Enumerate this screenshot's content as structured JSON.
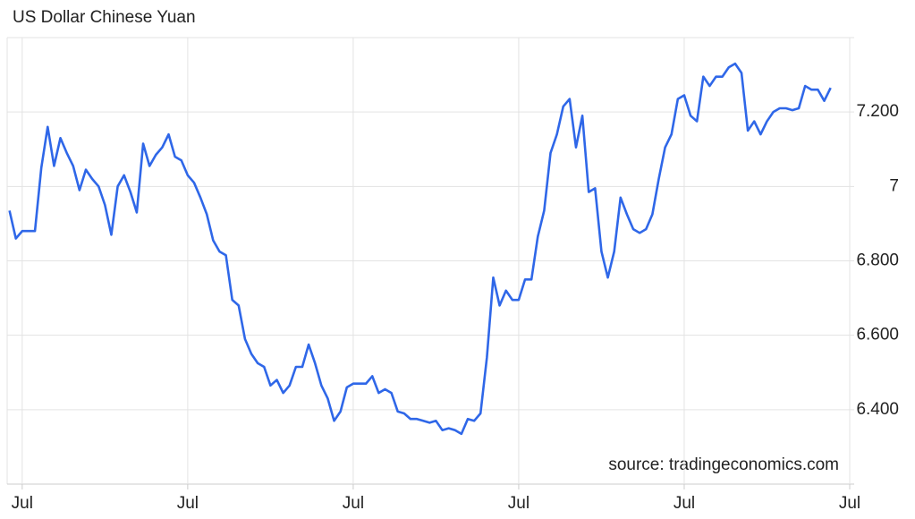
{
  "chart_data": {
    "type": "line",
    "title": "US Dollar Chinese Yuan",
    "annotation": "source: tradingeconomics.com",
    "color": "#2f67e8",
    "grid": true,
    "ylim": [
      6.2,
      7.4
    ],
    "yticks": [
      {
        "value": 6.4,
        "label": "6.400"
      },
      {
        "value": 6.6,
        "label": "6.600"
      },
      {
        "value": 6.8,
        "label": "6.800"
      },
      7,
      {
        "value": 7.2,
        "label": "7.200"
      }
    ],
    "categories": [
      null,
      null,
      "Jul",
      null,
      null,
      null,
      null,
      null,
      null,
      null,
      null,
      null,
      null,
      null,
      null,
      null,
      null,
      null,
      null,
      null,
      null,
      null,
      null,
      null,
      null,
      null,
      null,
      null,
      "Jul",
      null,
      null,
      null,
      null,
      null,
      null,
      null,
      null,
      null,
      null,
      null,
      null,
      null,
      null,
      null,
      null,
      null,
      null,
      null,
      null,
      null,
      null,
      null,
      null,
      null,
      "Jul",
      null,
      null,
      null,
      null,
      null,
      null,
      null,
      null,
      null,
      null,
      null,
      null,
      null,
      null,
      null,
      null,
      null,
      null,
      null,
      null,
      null,
      null,
      null,
      null,
      null,
      "Jul",
      null,
      null,
      null,
      null,
      null,
      null,
      null,
      null,
      null,
      null,
      null,
      null,
      null,
      null,
      null,
      null,
      null,
      null,
      null,
      null,
      null,
      null,
      null,
      null,
      null,
      "Jul",
      null,
      null,
      null,
      null,
      null,
      null,
      null,
      null,
      null,
      null,
      null,
      null,
      null,
      null,
      null,
      null,
      null,
      null,
      null,
      null,
      null,
      null,
      null,
      null,
      null,
      "Jul"
    ],
    "values": [
      6.935,
      6.86,
      6.88,
      6.88,
      6.88,
      7.05,
      7.16,
      7.055,
      7.13,
      7.09,
      7.055,
      6.99,
      7.045,
      7.02,
      7.0,
      6.95,
      6.87,
      7.0,
      7.03,
      6.985,
      6.93,
      7.115,
      7.055,
      7.085,
      7.105,
      7.14,
      7.08,
      7.07,
      7.03,
      7.01,
      6.97,
      6.925,
      6.855,
      6.825,
      6.815,
      6.695,
      6.68,
      6.59,
      6.55,
      6.525,
      6.515,
      6.465,
      6.48,
      6.445,
      6.465,
      6.515,
      6.515,
      6.575,
      6.525,
      6.465,
      6.43,
      6.37,
      6.395,
      6.46,
      6.47,
      6.47,
      6.47,
      6.49,
      6.445,
      6.455,
      6.445,
      6.395,
      6.39,
      6.375,
      6.375,
      6.37,
      6.365,
      6.37,
      6.345,
      6.35,
      6.345,
      6.335,
      6.375,
      6.37,
      6.39,
      6.54,
      6.755,
      6.68,
      6.72,
      6.695,
      6.695,
      6.75,
      6.75,
      6.865,
      6.935,
      7.09,
      7.14,
      7.215,
      7.235,
      7.105,
      7.19,
      6.985,
      6.995,
      6.825,
      6.755,
      6.825,
      6.97,
      6.925,
      6.885,
      6.875,
      6.885,
      6.925,
      7.02,
      7.105,
      7.14,
      7.235,
      7.245,
      7.19,
      7.175,
      7.295,
      7.27,
      7.295,
      7.295,
      7.32,
      7.33,
      7.305,
      7.15,
      7.175,
      7.14,
      7.175,
      7.2,
      7.21,
      7.21,
      7.205,
      7.21,
      7.27,
      7.26,
      7.26,
      7.23,
      7.265,
      null,
      null,
      null
    ]
  }
}
